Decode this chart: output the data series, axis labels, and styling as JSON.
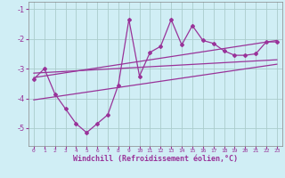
{
  "xlabel": "Windchill (Refroidissement éolien,°C)",
  "bg_color": "#d0eef5",
  "grid_color": "#aacccc",
  "line_color": "#993399",
  "label_color": "#993399",
  "xlim": [
    -0.5,
    23.5
  ],
  "ylim": [
    -5.6,
    -0.75
  ],
  "xticks": [
    0,
    1,
    2,
    3,
    4,
    5,
    6,
    7,
    8,
    9,
    10,
    11,
    12,
    13,
    14,
    15,
    16,
    17,
    18,
    19,
    20,
    21,
    22,
    23
  ],
  "yticks": [
    -5,
    -4,
    -3,
    -2,
    -1
  ],
  "data_x": [
    0,
    1,
    2,
    3,
    4,
    5,
    6,
    7,
    8,
    9,
    10,
    11,
    12,
    13,
    14,
    15,
    16,
    17,
    18,
    19,
    20,
    21,
    22,
    23
  ],
  "data_y": [
    -3.35,
    -3.0,
    -3.85,
    -4.35,
    -4.85,
    -5.15,
    -4.85,
    -4.55,
    -3.55,
    -1.35,
    -3.25,
    -2.45,
    -2.25,
    -1.35,
    -2.2,
    -1.55,
    -2.05,
    -2.15,
    -2.4,
    -2.55,
    -2.55,
    -2.5,
    -2.1,
    -2.1
  ],
  "trend1_x": [
    0,
    23
  ],
  "trend1_y": [
    -3.3,
    -2.05
  ],
  "trend2_x": [
    0,
    23
  ],
  "trend2_y": [
    -3.15,
    -2.7
  ],
  "trend3_x": [
    0,
    23
  ],
  "trend3_y": [
    -4.05,
    -2.85
  ]
}
